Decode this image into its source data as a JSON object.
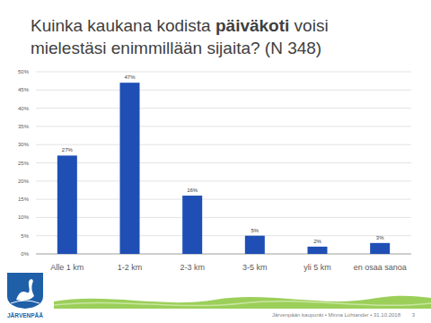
{
  "chart_data": {
    "type": "bar",
    "title": "Kuinka kaukana kodista päiväkoti voisi mielestäsi enimmillään sijaita? (N 348)",
    "title_bold": "päiväkoti",
    "categories": [
      "Alle 1 km",
      "1-2 km",
      "2-3 km",
      "3-5 km",
      "yli 5 km",
      "en osaa sanoa"
    ],
    "values": [
      27,
      47,
      16,
      5,
      2,
      3
    ],
    "value_labels": [
      "27%",
      "47%",
      "16%",
      "5%",
      "2%",
      "3%"
    ],
    "color": "#1f4fb5",
    "data_labels": true,
    "grid": true,
    "ylim": [
      0,
      50
    ],
    "yticks": [
      {
        "value": 0,
        "label": "0%"
      },
      {
        "value": 5,
        "label": "5%"
      },
      {
        "value": 10,
        "label": "10%"
      },
      {
        "value": 15,
        "label": "15%"
      },
      {
        "value": 20,
        "label": "20%"
      },
      {
        "value": 25,
        "label": "25%"
      },
      {
        "value": 30,
        "label": "30%"
      },
      {
        "value": 35,
        "label": "35%"
      },
      {
        "value": 40,
        "label": "40%"
      },
      {
        "value": 45,
        "label": "45%"
      },
      {
        "value": 50,
        "label": "50%"
      }
    ]
  },
  "footer": {
    "text": "Järvenpään kaupunki • Minna Lohtander • 31.10.2018",
    "page_number": "3",
    "logo_text": "JÄRVENPÄÄ"
  }
}
